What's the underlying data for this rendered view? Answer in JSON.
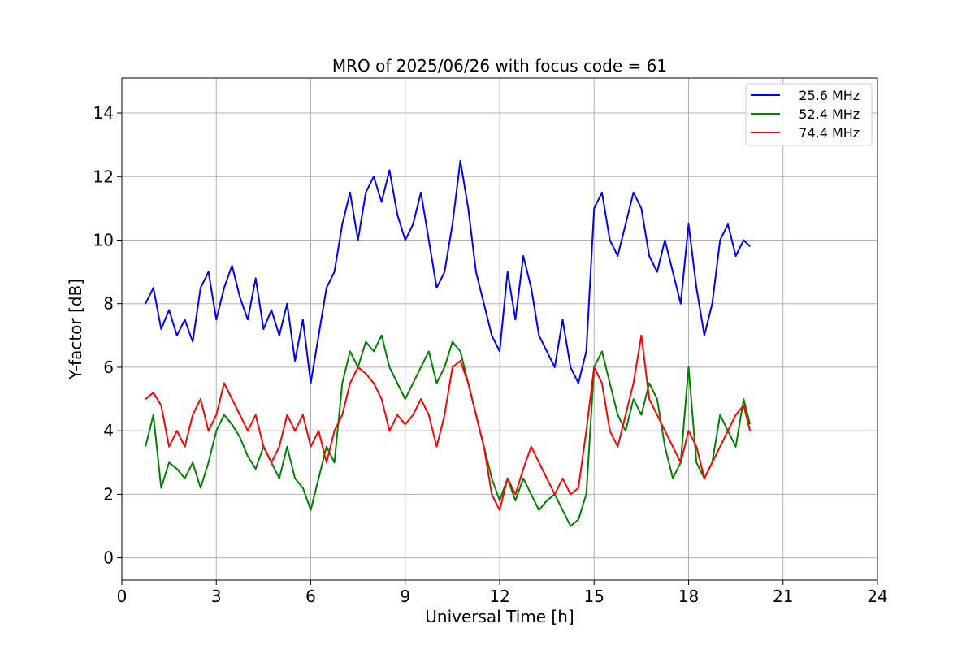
{
  "chart_data": {
    "type": "line",
    "title": "MRO of 2025/06/26 with focus code = 61",
    "xlabel": "Universal Time [h]",
    "ylabel": "Y-factor [dB]",
    "xlim": [
      0,
      24
    ],
    "ylim": [
      -0.7,
      15.1
    ],
    "xticks": [
      0,
      3,
      6,
      9,
      12,
      15,
      18,
      21,
      24
    ],
    "yticks": [
      0,
      2,
      4,
      6,
      8,
      10,
      12,
      14
    ],
    "grid": true,
    "legend_position": "top-right",
    "series": [
      {
        "name": "   25.6 MHz",
        "color": "#0000ff",
        "x": [
          0.75,
          1.0,
          1.25,
          1.5,
          1.75,
          2.0,
          2.25,
          2.5,
          2.75,
          3.0,
          3.25,
          3.5,
          3.75,
          4.0,
          4.25,
          4.5,
          4.75,
          5.0,
          5.25,
          5.5,
          5.75,
          6.0,
          6.25,
          6.5,
          6.75,
          7.0,
          7.25,
          7.5,
          7.75,
          8.0,
          8.25,
          8.5,
          8.75,
          9.0,
          9.25,
          9.5,
          9.75,
          10.0,
          10.25,
          10.5,
          10.75,
          11.0,
          11.25,
          11.5,
          11.75,
          12.0,
          12.25,
          12.5,
          12.75,
          13.0,
          13.25,
          13.5,
          13.75,
          14.0,
          14.25,
          14.5,
          14.75,
          15.0,
          15.25,
          15.5,
          15.75,
          16.0,
          16.25,
          16.5,
          16.75,
          17.0,
          17.25,
          17.5,
          17.75,
          18.0,
          18.25,
          18.5,
          18.75,
          19.0,
          19.25,
          19.5,
          19.75,
          19.95
        ],
        "y": [
          8.0,
          8.5,
          7.2,
          7.8,
          7.0,
          7.5,
          6.8,
          8.5,
          9.0,
          7.5,
          8.5,
          9.2,
          8.2,
          7.5,
          8.8,
          7.2,
          7.8,
          7.0,
          8.0,
          6.2,
          7.5,
          5.5,
          7.0,
          8.5,
          9.0,
          10.5,
          11.5,
          10.0,
          11.5,
          12.0,
          11.2,
          12.2,
          10.8,
          10.0,
          10.5,
          11.5,
          10.0,
          8.5,
          9.0,
          10.5,
          12.5,
          11.0,
          9.0,
          8.0,
          7.0,
          6.5,
          9.0,
          7.5,
          9.5,
          8.5,
          7.0,
          6.5,
          6.0,
          7.5,
          6.0,
          5.5,
          6.5,
          11.0,
          11.5,
          10.0,
          9.5,
          10.5,
          11.5,
          11.0,
          9.5,
          9.0,
          10.0,
          9.0,
          8.0,
          10.5,
          8.5,
          7.0,
          8.0,
          10.0,
          10.5,
          9.5,
          10.0,
          9.8
        ]
      },
      {
        "name": "   52.4 MHz",
        "color": "#008000",
        "x": [
          0.75,
          1.0,
          1.25,
          1.5,
          1.75,
          2.0,
          2.25,
          2.5,
          2.75,
          3.0,
          3.25,
          3.5,
          3.75,
          4.0,
          4.25,
          4.5,
          4.75,
          5.0,
          5.25,
          5.5,
          5.75,
          6.0,
          6.25,
          6.5,
          6.75,
          7.0,
          7.25,
          7.5,
          7.75,
          8.0,
          8.25,
          8.5,
          8.75,
          9.0,
          9.25,
          9.5,
          9.75,
          10.0,
          10.25,
          10.5,
          10.75,
          11.0,
          11.25,
          11.5,
          11.75,
          12.0,
          12.25,
          12.5,
          12.75,
          13.0,
          13.25,
          13.5,
          13.75,
          14.0,
          14.25,
          14.5,
          14.75,
          15.0,
          15.25,
          15.5,
          15.75,
          16.0,
          16.25,
          16.5,
          16.75,
          17.0,
          17.25,
          17.5,
          17.75,
          18.0,
          18.25,
          18.5,
          18.75,
          19.0,
          19.25,
          19.5,
          19.75,
          19.95
        ],
        "y": [
          3.5,
          4.5,
          2.2,
          3.0,
          2.8,
          2.5,
          3.0,
          2.2,
          3.0,
          4.0,
          4.5,
          4.2,
          3.8,
          3.2,
          2.8,
          3.5,
          3.0,
          2.5,
          3.5,
          2.5,
          2.2,
          1.5,
          2.5,
          3.5,
          3.0,
          5.5,
          6.5,
          6.0,
          6.8,
          6.5,
          7.0,
          6.0,
          5.5,
          5.0,
          5.5,
          6.0,
          6.5,
          5.5,
          6.0,
          6.8,
          6.5,
          5.5,
          4.5,
          3.5,
          2.5,
          1.8,
          2.5,
          1.8,
          2.5,
          2.0,
          1.5,
          1.8,
          2.0,
          1.5,
          1.0,
          1.2,
          2.0,
          6.0,
          6.5,
          5.5,
          4.5,
          4.0,
          5.0,
          4.5,
          5.5,
          5.0,
          3.5,
          2.5,
          3.0,
          6.0,
          3.0,
          2.5,
          3.0,
          4.5,
          4.0,
          3.5,
          5.0,
          4.2
        ]
      },
      {
        "name": "   74.4 MHz",
        "color": "#ff0000",
        "x": [
          0.75,
          1.0,
          1.25,
          1.5,
          1.75,
          2.0,
          2.25,
          2.5,
          2.75,
          3.0,
          3.25,
          3.5,
          3.75,
          4.0,
          4.25,
          4.5,
          4.75,
          5.0,
          5.25,
          5.5,
          5.75,
          6.0,
          6.25,
          6.5,
          6.75,
          7.0,
          7.25,
          7.5,
          7.75,
          8.0,
          8.25,
          8.5,
          8.75,
          9.0,
          9.25,
          9.5,
          9.75,
          10.0,
          10.25,
          10.5,
          10.75,
          11.0,
          11.25,
          11.5,
          11.75,
          12.0,
          12.25,
          12.5,
          12.75,
          13.0,
          13.25,
          13.5,
          13.75,
          14.0,
          14.25,
          14.5,
          14.75,
          15.0,
          15.25,
          15.5,
          15.75,
          16.0,
          16.25,
          16.5,
          16.75,
          17.0,
          17.25,
          17.5,
          17.75,
          18.0,
          18.25,
          18.5,
          18.75,
          19.0,
          19.25,
          19.5,
          19.75,
          19.95
        ],
        "y": [
          5.0,
          5.2,
          4.8,
          3.5,
          4.0,
          3.5,
          4.5,
          5.0,
          4.0,
          4.5,
          5.5,
          5.0,
          4.5,
          4.0,
          4.5,
          3.5,
          3.0,
          3.5,
          4.5,
          4.0,
          4.5,
          3.5,
          4.0,
          3.0,
          4.0,
          4.5,
          5.5,
          6.0,
          5.8,
          5.5,
          5.0,
          4.0,
          4.5,
          4.2,
          4.5,
          5.0,
          4.5,
          3.5,
          4.5,
          6.0,
          6.2,
          5.5,
          4.5,
          3.5,
          2.0,
          1.5,
          2.5,
          2.0,
          2.8,
          3.5,
          3.0,
          2.5,
          2.0,
          2.5,
          2.0,
          2.2,
          4.0,
          6.0,
          5.5,
          4.0,
          3.5,
          4.5,
          5.5,
          7.0,
          5.0,
          4.5,
          4.0,
          3.5,
          3.0,
          4.0,
          3.5,
          2.5,
          3.0,
          3.5,
          4.0,
          4.5,
          4.8,
          4.0
        ]
      }
    ]
  }
}
